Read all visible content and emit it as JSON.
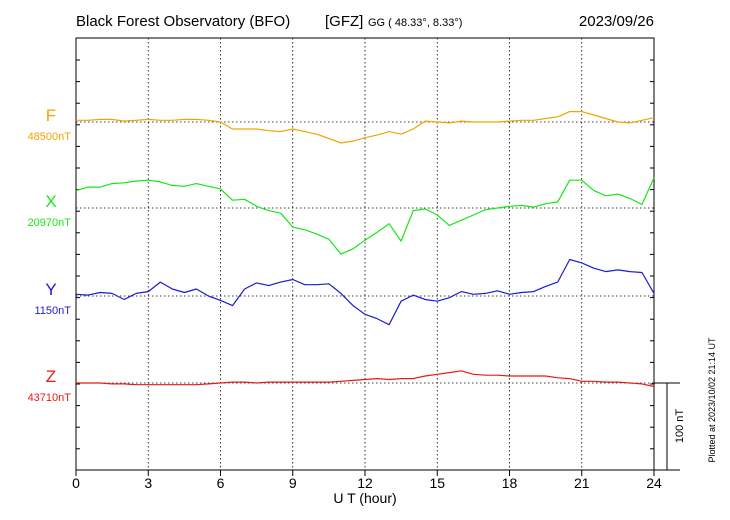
{
  "title": {
    "station": "Black Forest Observatory (BFO)",
    "agency": "[GFZ]",
    "coords": "GG ( 48.33°,   8.33°)",
    "date": "2023/09/26"
  },
  "plotted_note": "Plotted at 2023/10/02 21:14 UT",
  "chart_data": {
    "type": "line",
    "xlabel": "U T (hour)",
    "xlim": [
      0,
      24
    ],
    "xticks": [
      "0",
      "3",
      "6",
      "9",
      "12",
      "15",
      "18",
      "21",
      "24"
    ],
    "scale_bar": "100 nT",
    "scale_nT": 100,
    "grid": true,
    "series": [
      {
        "name": "F",
        "baseline": "48500nT",
        "color": "#f0a400",
        "baseline_nT": 0,
        "x": [
          0,
          0.5,
          1,
          1.5,
          2,
          2.5,
          3,
          3.5,
          4,
          4.5,
          5,
          5.5,
          6,
          6.5,
          7,
          7.5,
          8,
          8.5,
          9,
          9.5,
          10,
          10.5,
          11,
          11.5,
          12,
          12.5,
          13,
          13.5,
          14,
          14.5,
          15,
          15.5,
          16,
          16.5,
          17,
          17.5,
          18,
          18.5,
          19,
          19.5,
          20,
          20.5,
          21,
          21.5,
          22,
          22.5,
          23,
          23.5,
          24
        ],
        "y": [
          2,
          2,
          3,
          3,
          1,
          2,
          3,
          2,
          2,
          3,
          3,
          2,
          0,
          -8,
          -8,
          -8,
          -10,
          -11,
          -8,
          -11,
          -14,
          -19,
          -24,
          -22,
          -18,
          -15,
          -11,
          -14,
          -8,
          1,
          0,
          -1,
          1,
          0,
          0,
          0,
          1,
          2,
          2,
          4,
          6,
          12,
          12,
          8,
          4,
          0,
          -1,
          2,
          5
        ]
      },
      {
        "name": "X",
        "baseline": "20970nT",
        "color": "#19e619",
        "baseline_nT": 0,
        "x": [
          0,
          0.5,
          1,
          1.5,
          2,
          2.5,
          3,
          3.5,
          4,
          4.5,
          5,
          5.5,
          6,
          6.5,
          7,
          7.5,
          8,
          8.5,
          9,
          9.5,
          10,
          10.5,
          11,
          11.5,
          12,
          12.5,
          13,
          13.5,
          14,
          14.5,
          15,
          15.5,
          16,
          16.5,
          17,
          17.5,
          18,
          18.5,
          19,
          19.5,
          20,
          20.5,
          21,
          21.5,
          22,
          22.5,
          23,
          23.5,
          24
        ],
        "y": [
          20,
          24,
          24,
          28,
          29,
          31,
          32,
          30,
          26,
          25,
          28,
          25,
          22,
          9,
          10,
          2,
          -3,
          -6,
          -22,
          -25,
          -30,
          -36,
          -53,
          -47,
          -37,
          -28,
          -18,
          -38,
          -3,
          -1,
          -8,
          -20,
          -14,
          -8,
          -2,
          0,
          2,
          3,
          1,
          5,
          7,
          32,
          32,
          20,
          14,
          16,
          11,
          4,
          35
        ]
      },
      {
        "name": "Y",
        "baseline": "1150nT",
        "color": "#1c1ccc",
        "baseline_nT": 0,
        "x": [
          0,
          0.5,
          1,
          1.5,
          2,
          2.5,
          3,
          3.5,
          4,
          4.5,
          5,
          5.5,
          6,
          6.5,
          7,
          7.5,
          8,
          8.5,
          9,
          9.5,
          10,
          10.5,
          11,
          11.5,
          12,
          12.5,
          13,
          13.5,
          14,
          14.5,
          15,
          15.5,
          16,
          16.5,
          17,
          17.5,
          18,
          18.5,
          19,
          19.5,
          20,
          20.5,
          21,
          21.5,
          22,
          22.5,
          23,
          23.5,
          24
        ],
        "y": [
          2,
          1,
          4,
          3,
          -4,
          3,
          5,
          16,
          8,
          4,
          8,
          0,
          -5,
          -11,
          8,
          15,
          12,
          16,
          19,
          13,
          13,
          14,
          3,
          -11,
          -21,
          -26,
          -33,
          -6,
          1,
          -4,
          -6,
          -2,
          5,
          2,
          3,
          6,
          2,
          4,
          5,
          11,
          16,
          42,
          38,
          32,
          28,
          30,
          28,
          27,
          3
        ]
      },
      {
        "name": "Z",
        "baseline": "43710nT",
        "color": "#e61919",
        "baseline_nT": 0,
        "x": [
          0,
          0.5,
          1,
          1.5,
          2,
          2.5,
          3,
          3.5,
          4,
          4.5,
          5,
          5.5,
          6,
          6.5,
          7,
          7.5,
          8,
          8.5,
          9,
          9.5,
          10,
          10.5,
          11,
          11.5,
          12,
          12.5,
          13,
          13.5,
          14,
          14.5,
          15,
          15.5,
          16,
          16.5,
          17,
          17.5,
          18,
          18.5,
          19,
          19.5,
          20,
          20.5,
          21,
          21.5,
          22,
          22.5,
          23,
          23.5,
          24
        ],
        "y": [
          0,
          0,
          0,
          -1,
          -1,
          -2,
          -2,
          -2,
          -2,
          -2,
          -2,
          -1,
          0,
          1,
          1,
          0,
          1,
          1,
          1,
          1,
          1,
          1,
          2,
          3,
          4,
          5,
          4,
          5,
          5,
          8,
          10,
          12,
          14,
          10,
          9,
          9,
          8,
          8,
          8,
          8,
          6,
          5,
          2,
          2,
          1,
          1,
          0,
          -1,
          -4
        ]
      }
    ]
  }
}
